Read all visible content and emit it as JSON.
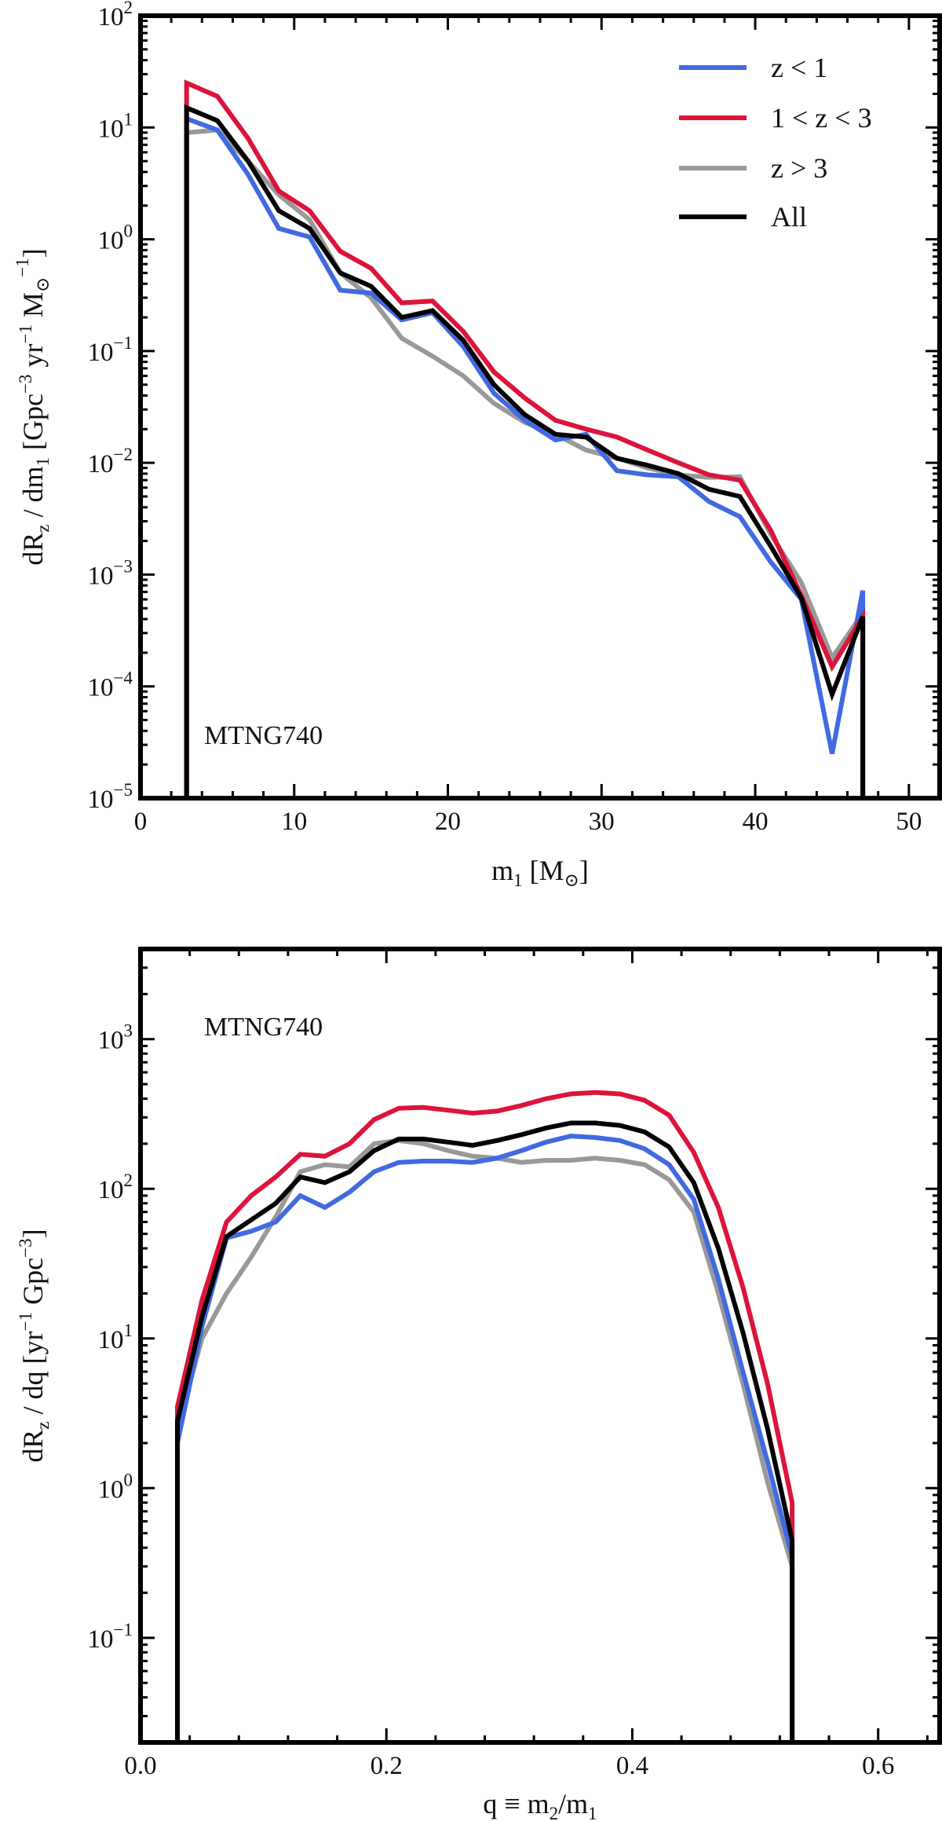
{
  "colors": {
    "z_lt_1": "#4169e1",
    "z_1_3": "#dc143c",
    "z_gt_3": "#999999",
    "all": "#000000",
    "axes": "#000000"
  },
  "chart_data": [
    {
      "type": "line",
      "yscale": "log",
      "annotation": "MTNG740",
      "xlabel": "m_1 [M_⊙]",
      "ylabel": "dR_z / dm_1 [Gpc^-3 yr^-1 M_⊙^-1]",
      "xlim": [
        0,
        52
      ],
      "ylim": [
        1e-05,
        100
      ],
      "x_ticks": [
        0,
        10,
        20,
        30,
        40,
        50
      ],
      "x_tick_labels": [
        "0",
        "10",
        "20",
        "30",
        "40",
        "50"
      ],
      "y_tick_exponents": [
        "−5",
        "−4",
        "−3",
        "−2",
        "−1",
        "0",
        "1",
        "2"
      ],
      "y_tick_base": "10",
      "legend_position": "top-right",
      "x": [
        3,
        5,
        7,
        9,
        11,
        13,
        15,
        17,
        19,
        21,
        23,
        25,
        27,
        29,
        31,
        33,
        35,
        37,
        39,
        41,
        43,
        45,
        47
      ],
      "series": [
        {
          "key": "z_lt_1",
          "name": "z < 1",
          "values": [
            12,
            9.5,
            3.8,
            1.25,
            1.05,
            0.35,
            0.33,
            0.19,
            0.22,
            0.11,
            0.042,
            0.024,
            0.016,
            0.018,
            0.0085,
            0.0078,
            0.0075,
            0.0045,
            0.0033,
            0.0013,
            0.0006,
            2.5e-05,
            0.00072
          ]
        },
        {
          "key": "z_1_3",
          "name": "1 < z < 3",
          "values": [
            25,
            19,
            8,
            2.7,
            1.8,
            0.78,
            0.55,
            0.27,
            0.28,
            0.15,
            0.065,
            0.038,
            0.024,
            0.02,
            0.017,
            0.013,
            0.01,
            0.0078,
            0.007,
            0.0025,
            0.00065,
            0.00015,
            0.00042
          ]
        },
        {
          "key": "z_gt_3",
          "name": "z > 3",
          "values": [
            9,
            9.5,
            5,
            2.5,
            1.5,
            0.5,
            0.3,
            0.13,
            0.09,
            0.06,
            0.034,
            0.023,
            0.018,
            0.013,
            0.011,
            0.009,
            0.0078,
            0.0074,
            0.0075,
            0.0023,
            0.00085,
            0.00018,
            0.00045
          ]
        },
        {
          "key": "all",
          "name": "All",
          "values": [
            15,
            11.5,
            5,
            1.8,
            1.25,
            0.5,
            0.38,
            0.2,
            0.23,
            0.125,
            0.05,
            0.027,
            0.018,
            0.017,
            0.011,
            0.0095,
            0.008,
            0.0058,
            0.005,
            0.0018,
            0.00062,
            8.5e-05,
            0.00042
          ]
        }
      ]
    },
    {
      "type": "line",
      "yscale": "log",
      "annotation": "MTNG740",
      "xlabel": "q ≡ m_2 / m_1",
      "ylabel": "dR_z / dq [yr^-1 Gpc^-3]",
      "xlim": [
        0,
        0.65
      ],
      "ylim": [
        0.02,
        4000
      ],
      "x_ticks": [
        0,
        0.2,
        0.4,
        0.6
      ],
      "x_tick_labels": [
        "0.0",
        "0.2",
        "0.4",
        "0.6"
      ],
      "y_tick_exponents": [
        "−1",
        "0",
        "1",
        "2",
        "3"
      ],
      "y_tick_base": "10",
      "x": [
        0.03,
        0.05,
        0.07,
        0.09,
        0.11,
        0.13,
        0.15,
        0.17,
        0.19,
        0.21,
        0.23,
        0.25,
        0.27,
        0.29,
        0.31,
        0.33,
        0.35,
        0.37,
        0.39,
        0.41,
        0.43,
        0.45,
        0.47,
        0.49,
        0.51,
        0.53
      ],
      "series": [
        {
          "key": "z_lt_1",
          "name": "z < 1",
          "values": [
            2,
            12,
            47,
            52,
            60,
            90,
            75,
            95,
            130,
            150,
            153,
            153,
            150,
            160,
            180,
            205,
            225,
            220,
            210,
            185,
            145,
            85,
            25,
            6,
            1.5,
            0.35
          ]
        },
        {
          "key": "z_1_3",
          "name": "1 < z < 3",
          "values": [
            3.5,
            18,
            60,
            90,
            120,
            170,
            165,
            200,
            290,
            345,
            350,
            335,
            320,
            330,
            360,
            400,
            430,
            440,
            430,
            390,
            310,
            175,
            75,
            22,
            5,
            0.8
          ]
        },
        {
          "key": "z_gt_3",
          "name": "z > 3",
          "values": [
            2.5,
            10,
            20,
            35,
            65,
            130,
            145,
            140,
            200,
            210,
            200,
            180,
            165,
            160,
            150,
            155,
            155,
            160,
            155,
            145,
            115,
            70,
            20,
            5,
            1.1,
            0.3
          ]
        },
        {
          "key": "all",
          "name": "All",
          "values": [
            2.8,
            14,
            48,
            62,
            80,
            120,
            110,
            130,
            180,
            215,
            215,
            205,
            195,
            210,
            230,
            255,
            275,
            275,
            265,
            240,
            190,
            110,
            40,
            11,
            2.5,
            0.45
          ]
        }
      ]
    }
  ]
}
